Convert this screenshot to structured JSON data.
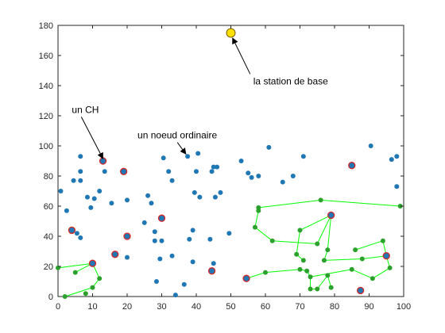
{
  "chart_data": {
    "type": "scatter",
    "xlim": [
      0,
      100
    ],
    "ylim": [
      0,
      180
    ],
    "x_ticks": [
      0,
      10,
      20,
      30,
      40,
      50,
      60,
      70,
      80,
      90,
      100
    ],
    "y_ticks": [
      0,
      20,
      40,
      60,
      80,
      100,
      120,
      140,
      160,
      180
    ],
    "grid": false,
    "colors": {
      "node": "#1f77b4",
      "ch_ring": "#d62728",
      "cluster": "#2ca02c",
      "link": "#00ff00",
      "base_station": "#ffe000",
      "base_station_edge": "#7f6000"
    },
    "base_station": {
      "x": 50,
      "y": 175
    },
    "ordinary_nodes": [
      [
        0.8,
        70
      ],
      [
        2.5,
        57
      ],
      [
        4.5,
        77
      ],
      [
        5.5,
        42
      ],
      [
        6.5,
        93
      ],
      [
        6.5,
        83
      ],
      [
        6.5,
        77
      ],
      [
        6.5,
        39
      ],
      [
        8.5,
        66
      ],
      [
        9.5,
        59
      ],
      [
        10.5,
        65
      ],
      [
        12,
        70
      ],
      [
        13.5,
        83
      ],
      [
        15.5,
        62
      ],
      [
        20,
        64
      ],
      [
        20,
        26
      ],
      [
        25,
        49
      ],
      [
        26,
        67
      ],
      [
        27,
        62
      ],
      [
        28,
        37
      ],
      [
        28,
        43
      ],
      [
        28.5,
        10
      ],
      [
        29.5,
        25
      ],
      [
        30,
        37
      ],
      [
        30.5,
        92
      ],
      [
        32,
        83
      ],
      [
        33,
        77
      ],
      [
        33,
        27
      ],
      [
        34,
        1
      ],
      [
        36.5,
        8
      ],
      [
        37.5,
        93
      ],
      [
        38,
        38
      ],
      [
        39,
        23
      ],
      [
        39,
        44
      ],
      [
        39.5,
        69
      ],
      [
        40,
        83
      ],
      [
        40.5,
        95
      ],
      [
        41,
        66
      ],
      [
        44,
        38
      ],
      [
        44.5,
        83
      ],
      [
        45,
        22
      ],
      [
        45,
        86
      ],
      [
        45.5,
        66
      ],
      [
        46,
        86
      ],
      [
        47,
        69
      ],
      [
        49.5,
        42
      ],
      [
        53,
        90
      ],
      [
        55,
        82
      ],
      [
        56,
        79
      ],
      [
        58,
        80
      ],
      [
        61,
        99
      ],
      [
        65,
        76
      ],
      [
        68,
        80
      ],
      [
        71,
        93
      ],
      [
        90.5,
        100
      ],
      [
        96.5,
        91
      ],
      [
        98,
        93
      ],
      [
        98,
        73
      ]
    ],
    "cluster_heads": [
      [
        4,
        44
      ],
      [
        10,
        22
      ],
      [
        13,
        90
      ],
      [
        16.5,
        28
      ],
      [
        19,
        83
      ],
      [
        20,
        40
      ],
      [
        30,
        52
      ],
      [
        44.5,
        17
      ],
      [
        54.5,
        12
      ],
      [
        79,
        54
      ],
      [
        85,
        87
      ],
      [
        87.5,
        4
      ],
      [
        95,
        27
      ]
    ],
    "cluster_nodes": [
      [
        0,
        19
      ],
      [
        2,
        0
      ],
      [
        5,
        16
      ],
      [
        8,
        2
      ],
      [
        10,
        6
      ],
      [
        12,
        12
      ],
      [
        58,
        57
      ],
      [
        58,
        59
      ],
      [
        57,
        46
      ],
      [
        60,
        16
      ],
      [
        62,
        37
      ],
      [
        69,
        28
      ],
      [
        70,
        18
      ],
      [
        70,
        44
      ],
      [
        71,
        24
      ],
      [
        72,
        17
      ],
      [
        73,
        13
      ],
      [
        73,
        5
      ],
      [
        75,
        5
      ],
      [
        75,
        35
      ],
      [
        76,
        64
      ],
      [
        77,
        24
      ],
      [
        78,
        31
      ],
      [
        78,
        14
      ],
      [
        79,
        6
      ],
      [
        85,
        18
      ],
      [
        86,
        31
      ],
      [
        88,
        25
      ],
      [
        91,
        12
      ],
      [
        94,
        37
      ],
      [
        96,
        19
      ],
      [
        99,
        60
      ]
    ],
    "links": [
      [
        [
          0,
          19
        ],
        [
          10,
          22
        ]
      ],
      [
        [
          5,
          16
        ],
        [
          10,
          22
        ]
      ],
      [
        [
          2,
          0
        ],
        [
          10,
          6
        ]
      ],
      [
        [
          10,
          6
        ],
        [
          12,
          12
        ]
      ],
      [
        [
          12,
          12
        ],
        [
          10,
          22
        ]
      ],
      [
        [
          54.5,
          12
        ],
        [
          60,
          16
        ]
      ],
      [
        [
          60,
          16
        ],
        [
          70,
          18
        ]
      ],
      [
        [
          70,
          18
        ],
        [
          72,
          17
        ]
      ],
      [
        [
          72,
          17
        ],
        [
          73,
          13
        ]
      ],
      [
        [
          73,
          13
        ],
        [
          73,
          5
        ]
      ],
      [
        [
          73,
          5
        ],
        [
          75,
          5
        ]
      ],
      [
        [
          75,
          5
        ],
        [
          78,
          14
        ]
      ],
      [
        [
          78,
          14
        ],
        [
          79,
          6
        ]
      ],
      [
        [
          73,
          13
        ],
        [
          85,
          18
        ]
      ],
      [
        [
          85,
          18
        ],
        [
          91,
          12
        ]
      ],
      [
        [
          91,
          12
        ],
        [
          96,
          19
        ]
      ],
      [
        [
          96,
          19
        ],
        [
          95,
          27
        ]
      ],
      [
        [
          58,
          57
        ],
        [
          58,
          59
        ]
      ],
      [
        [
          58,
          59
        ],
        [
          76,
          64
        ]
      ],
      [
        [
          76,
          64
        ],
        [
          99,
          60
        ]
      ],
      [
        [
          58,
          57
        ],
        [
          57,
          46
        ]
      ],
      [
        [
          57,
          46
        ],
        [
          62,
          37
        ]
      ],
      [
        [
          62,
          37
        ],
        [
          75,
          35
        ]
      ],
      [
        [
          75,
          35
        ],
        [
          79,
          54
        ]
      ],
      [
        [
          71,
          24
        ],
        [
          69,
          28
        ]
      ],
      [
        [
          69,
          28
        ],
        [
          70,
          44
        ]
      ],
      [
        [
          70,
          44
        ],
        [
          79,
          54
        ]
      ],
      [
        [
          79,
          54
        ],
        [
          78,
          31
        ]
      ],
      [
        [
          78,
          31
        ],
        [
          77,
          24
        ]
      ],
      [
        [
          77,
          24
        ],
        [
          88,
          25
        ]
      ],
      [
        [
          88,
          25
        ],
        [
          95,
          27
        ]
      ],
      [
        [
          86,
          31
        ],
        [
          94,
          37
        ]
      ],
      [
        [
          94,
          37
        ],
        [
          95,
          27
        ]
      ]
    ],
    "annotations": [
      {
        "text": "un CH",
        "text_pos": [
          4,
          124
        ],
        "target": [
          13,
          90
        ]
      },
      {
        "text": "un noeud ordinaire",
        "text_pos": [
          23,
          107
        ],
        "target": [
          37,
          93
        ]
      },
      {
        "text": "la station de base",
        "text_pos": [
          56.5,
          143
        ],
        "target": [
          50.5,
          170
        ]
      }
    ]
  }
}
